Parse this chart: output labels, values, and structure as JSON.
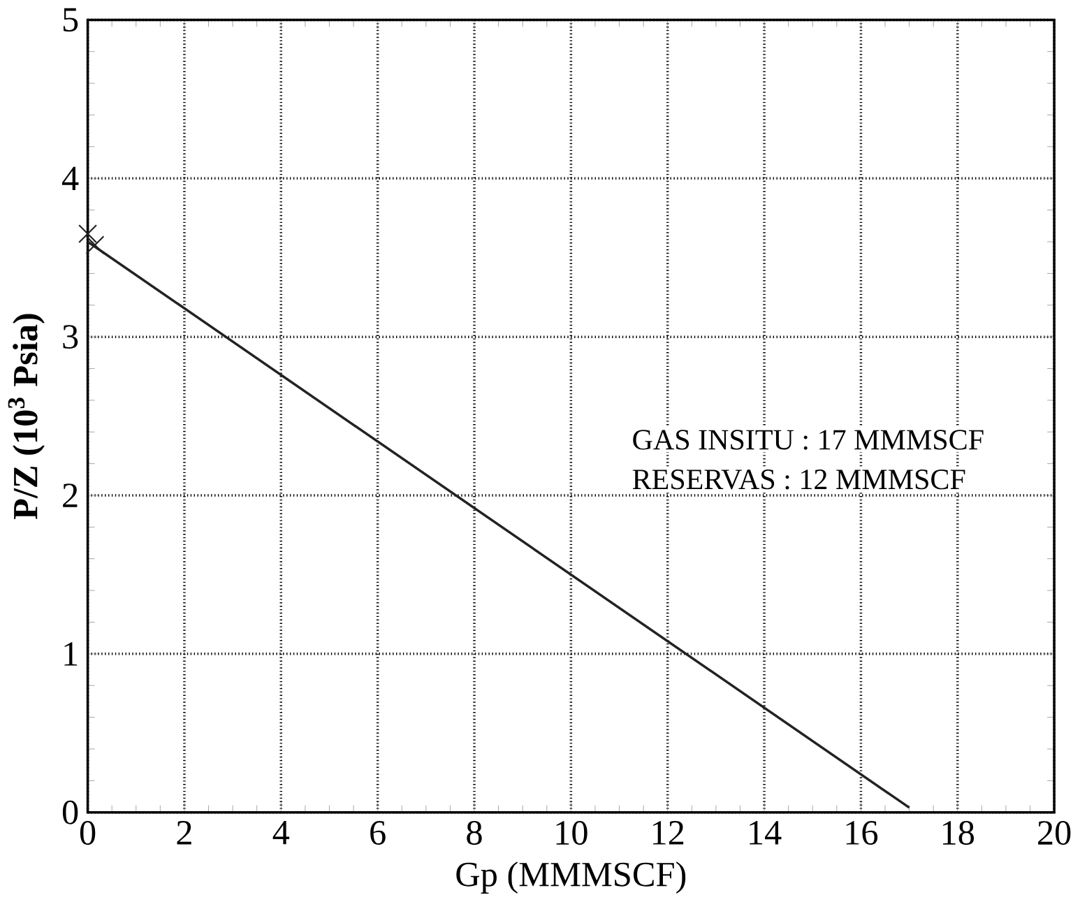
{
  "chart_data": {
    "type": "line",
    "xlabel": "Gp (MMMSCF)",
    "ylabel": "P/Z (10$^{3}$ Psia)",
    "xlim": [
      0,
      20
    ],
    "ylim": [
      0,
      5
    ],
    "xticks": [
      0,
      2,
      4,
      6,
      8,
      10,
      12,
      14,
      16,
      18,
      20
    ],
    "yticks": [
      0,
      1,
      2,
      3,
      4,
      5
    ],
    "grid": true,
    "line_style": "solid",
    "color": "#222222",
    "series": [
      {
        "marker": "none",
        "x": [
          0,
          17
        ],
        "values": [
          3.6,
          0.03
        ]
      },
      {
        "type": "scatter",
        "marker": "cross",
        "x": [
          0,
          0.15
        ],
        "values": [
          3.65,
          3.58
        ]
      }
    ],
    "annotations": [
      "GAS INSITU : 17 MMMSCF",
      "RESERVAS  : 12 MMMSCF"
    ]
  }
}
